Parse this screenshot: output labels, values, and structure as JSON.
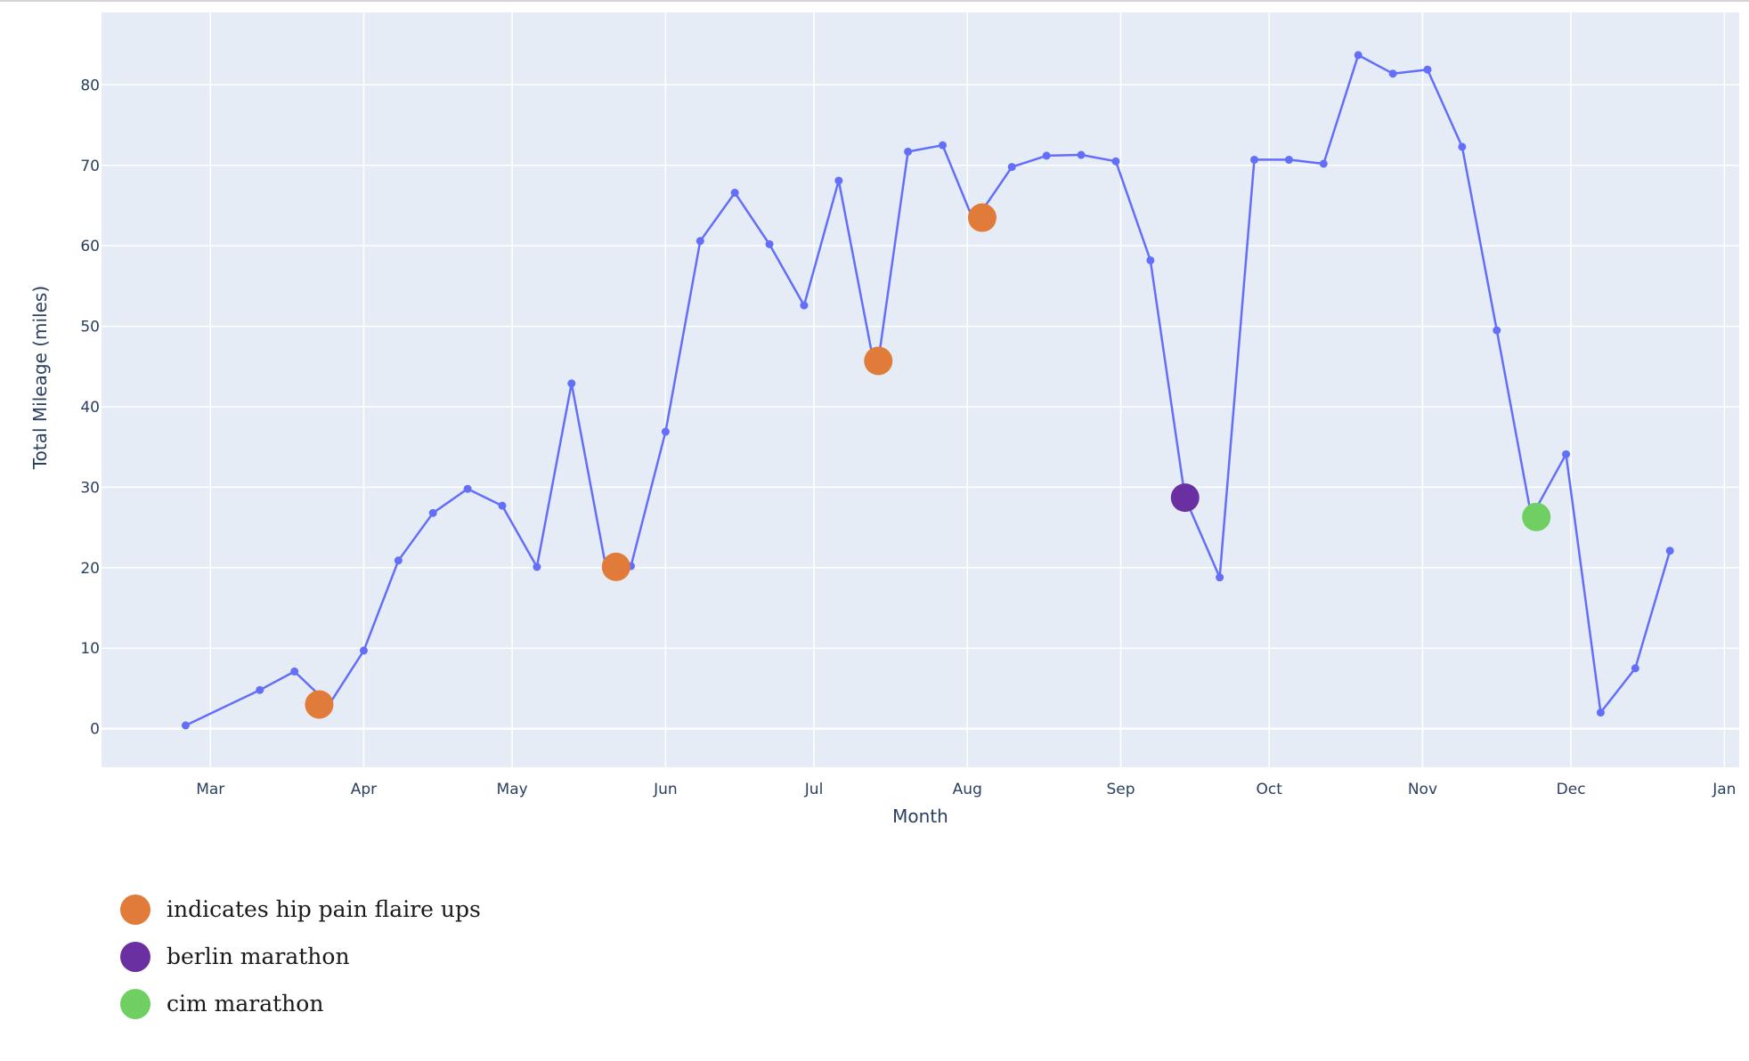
{
  "chart_data": {
    "type": "line",
    "xlabel": "Month",
    "ylabel": "Total Mileage (miles)",
    "x_tick_labels": [
      "Mar",
      "Apr",
      "May",
      "Jun",
      "Jul",
      "Aug",
      "Sep",
      "Oct",
      "Nov",
      "Dec",
      "Jan"
    ],
    "x_tick_dates": [
      "2024-03-01",
      "2024-04-01",
      "2024-05-01",
      "2024-06-01",
      "2024-07-01",
      "2024-08-01",
      "2024-09-01",
      "2024-10-01",
      "2024-11-01",
      "2024-12-01",
      "2025-01-01"
    ],
    "xlim": [
      "2024-02-08",
      "2025-01-04"
    ],
    "yticks": [
      0,
      10,
      20,
      30,
      40,
      50,
      60,
      70,
      80
    ],
    "ylim": [
      -4.8,
      89
    ],
    "grid": true,
    "line_color": "#636efa",
    "plot_background": "#e5ecf6",
    "series": [
      {
        "x": [
          "2024-02-25",
          "2024-03-11",
          "2024-03-18",
          "2024-03-25",
          "2024-04-01",
          "2024-04-08",
          "2024-04-15",
          "2024-04-22",
          "2024-04-29",
          "2024-05-06",
          "2024-05-13",
          "2024-05-20",
          "2024-05-23",
          "2024-05-25",
          "2024-06-01",
          "2024-06-08",
          "2024-06-15",
          "2024-06-22",
          "2024-06-29",
          "2024-07-06",
          "2024-07-13",
          "2024-07-14",
          "2024-07-20",
          "2024-07-27",
          "2024-08-02",
          "2024-08-03",
          "2024-08-10",
          "2024-08-17",
          "2024-08-24",
          "2024-08-31",
          "2024-09-07",
          "2024-09-14",
          "2024-09-21",
          "2024-09-28",
          "2024-10-05",
          "2024-10-12",
          "2024-10-19",
          "2024-10-26",
          "2024-11-02",
          "2024-11-09",
          "2024-11-16",
          "2024-11-23",
          "2024-11-30",
          "2024-12-07",
          "2024-12-14",
          "2024-12-21"
        ],
        "y": [
          0.4,
          4.8,
          7.1,
          3.0,
          9.7,
          20.9,
          26.8,
          29.8,
          27.7,
          20.1,
          42.9,
          19.9,
          20.1,
          20.2,
          36.9,
          60.6,
          66.6,
          60.2,
          52.6,
          68.1,
          45.7,
          45.7,
          71.7,
          72.5,
          63.5,
          63.5,
          69.8,
          71.2,
          71.3,
          70.5,
          58.2,
          28.7,
          18.8,
          70.7,
          70.7,
          70.2,
          83.7,
          81.4,
          81.9,
          72.3,
          49.5,
          26.3,
          34.1,
          2.0,
          7.5,
          22.1
        ]
      }
    ],
    "highlights": [
      {
        "x": "2024-03-23",
        "y": 3.0,
        "color": "#e07b39"
      },
      {
        "x": "2024-05-22",
        "y": 20.1,
        "color": "#e07b39"
      },
      {
        "x": "2024-07-14",
        "y": 45.7,
        "color": "#e07b39"
      },
      {
        "x": "2024-08-04",
        "y": 63.5,
        "color": "#e07b39"
      },
      {
        "x": "2024-09-14",
        "y": 28.7,
        "color": "#6a2fa0"
      },
      {
        "x": "2024-11-24",
        "y": 26.3,
        "color": "#6fcf62"
      }
    ],
    "legend": {
      "placement": "bottom-left",
      "items": [
        {
          "label": "indicates hip pain flaire ups",
          "color": "#e07b39"
        },
        {
          "label": "berlin marathon",
          "color": "#6a2fa0"
        },
        {
          "label": "cim marathon",
          "color": "#6fcf62"
        }
      ]
    }
  }
}
